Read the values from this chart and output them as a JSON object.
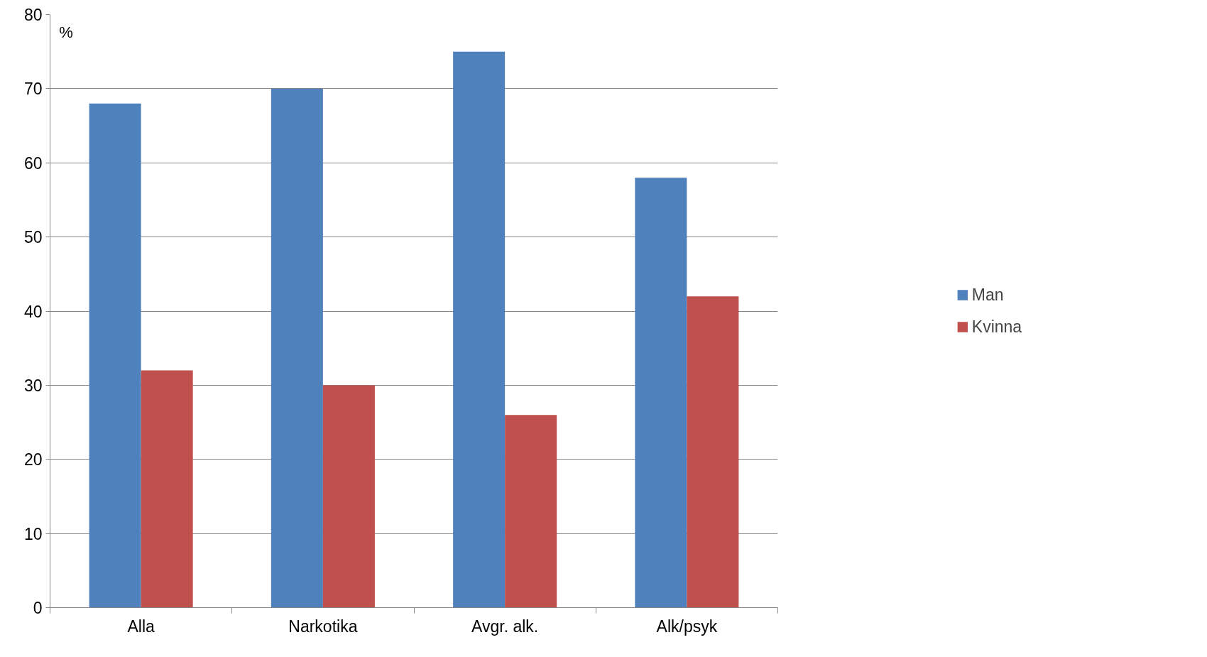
{
  "chart_data": {
    "type": "bar",
    "ylabel": "%",
    "categories": [
      "Alla",
      "Narkotika",
      "Avgr. alk.",
      "Alk/psyk"
    ],
    "series": [
      {
        "name": "Man",
        "color": "#4f81bd",
        "values": [
          68,
          70,
          75,
          58
        ]
      },
      {
        "name": "Kvinna",
        "color": "#c0504d",
        "values": [
          32,
          30,
          26,
          42
        ]
      }
    ],
    "ylim": [
      0,
      80
    ],
    "yticks": [
      0,
      10,
      20,
      30,
      40,
      50,
      60,
      70,
      80
    ],
    "grid": "y",
    "legend": "right"
  }
}
